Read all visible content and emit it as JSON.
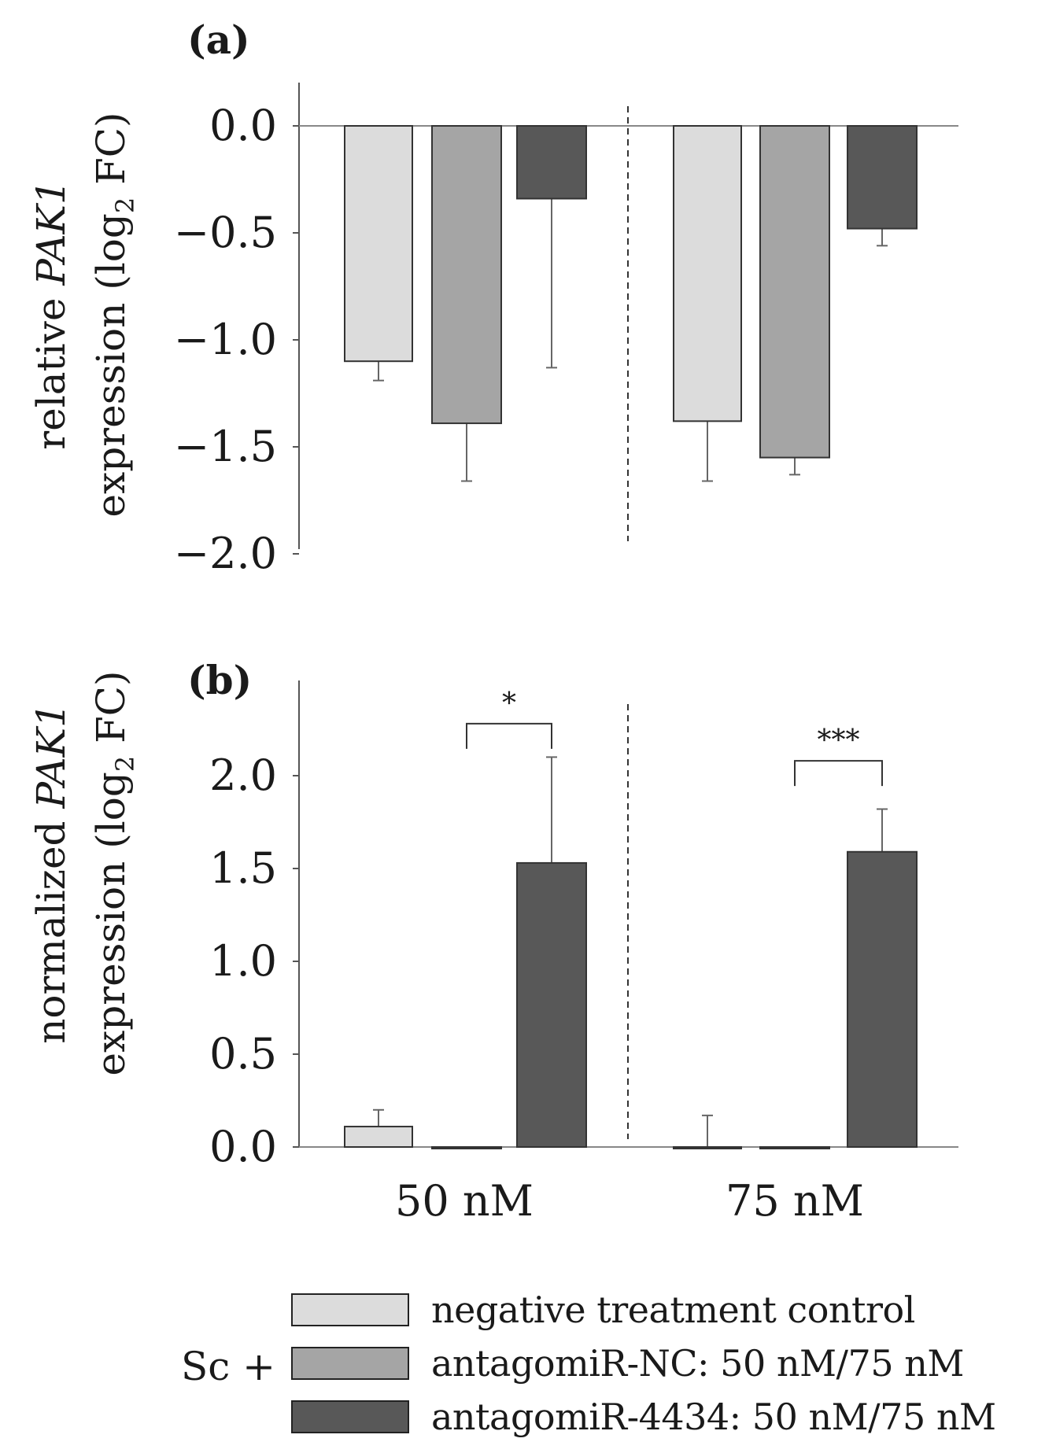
{
  "colors": {
    "negative_control": "#dcdcdc",
    "antagomir_nc": "#a5a5a5",
    "antagomir_4434": "#585858",
    "axis": "#555555",
    "ink": "#1a1a1a"
  },
  "chart_data": [
    {
      "panel_label": "(a)",
      "type": "bar",
      "ylabel_line1_prefix": "relative ",
      "ylabel_line1_italic": "PAK1",
      "ylabel_line2_prefix": "expression (log",
      "ylabel_line2_sub": "2",
      "ylabel_line2_suffix": " FC)",
      "ylim": [
        -2.0,
        0.2
      ],
      "yticks": [
        "0.0",
        "−0.5",
        "−1.0",
        "−1.5",
        "−2.0"
      ],
      "ytick_values": [
        0.0,
        -0.5,
        -1.0,
        -1.5,
        -2.0
      ],
      "categories": [
        "50 nM",
        "75 nM"
      ],
      "series": [
        {
          "name": "negative treatment control",
          "values": [
            -1.1,
            -1.38
          ],
          "errors": [
            0.09,
            0.28
          ]
        },
        {
          "name": "antagomiR-NC: 50 nM/75 nM",
          "values": [
            -1.39,
            -1.55
          ],
          "errors": [
            0.27,
            0.08
          ]
        },
        {
          "name": "antagomiR-4434: 50 nM/75 nM",
          "values": [
            -0.34,
            -0.48
          ],
          "errors": [
            0.79,
            0.08
          ]
        }
      ],
      "significance": []
    },
    {
      "panel_label": "(b)",
      "type": "bar",
      "ylabel_line1_prefix": "normalized  ",
      "ylabel_line1_italic": "PAK1",
      "ylabel_line2_prefix": "expression (log",
      "ylabel_line2_sub": "2",
      "ylabel_line2_suffix": " FC)",
      "ylim": [
        0.0,
        2.5
      ],
      "yticks": [
        "0.0",
        "0.5",
        "1.0",
        "1.5",
        "2.0"
      ],
      "ytick_values": [
        0.0,
        0.5,
        1.0,
        1.5,
        2.0
      ],
      "categories": [
        "50 nM",
        "75 nM"
      ],
      "series": [
        {
          "name": "negative treatment control",
          "values": [
            0.11,
            0.0
          ],
          "errors": [
            0.09,
            0.17
          ]
        },
        {
          "name": "antagomiR-NC: 50 nM/75 nM",
          "values": [
            0.0,
            0.0
          ],
          "errors": [
            0.0,
            0.0
          ]
        },
        {
          "name": "antagomiR-4434: 50 nM/75 nM",
          "values": [
            1.53,
            1.59
          ],
          "errors": [
            0.57,
            0.23
          ]
        }
      ],
      "significance": [
        {
          "category_index": 0,
          "from_series": 1,
          "to_series": 2,
          "label": "*",
          "y": 2.28
        },
        {
          "category_index": 1,
          "from_series": 1,
          "to_series": 2,
          "label": "***",
          "y": 2.08
        }
      ]
    }
  ],
  "legend": {
    "prefix": "Sc +",
    "items": [
      {
        "label": "negative treatment control"
      },
      {
        "label": "antagomiR-NC: 50 nM/75 nM"
      },
      {
        "label": "antagomiR-4434: 50 nM/75 nM"
      }
    ]
  }
}
